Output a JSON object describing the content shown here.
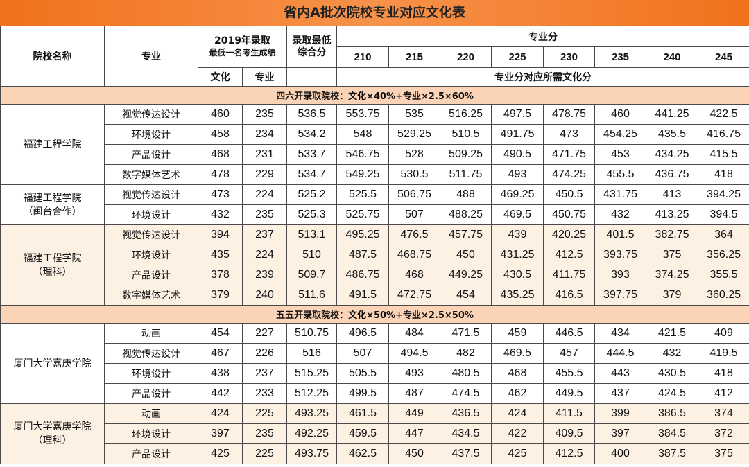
{
  "title": "省内A批次院校专业对应文化表",
  "header": {
    "school": "院校名称",
    "major": "专业",
    "min_score_line1": "2019年录取",
    "min_score_line2": "最低一名考生成绩",
    "culture": "文化",
    "prof": "专业",
    "composite_line1": "录取最低",
    "composite_line2": "综合分",
    "prof_score": "专业分",
    "prof_cols": [
      "210",
      "215",
      "220",
      "225",
      "230",
      "235",
      "240",
      "245"
    ],
    "needed": "专业分对应所需文化分"
  },
  "sections": [
    {
      "label": "四六开录取院校：文化×40%+专业×2.5×60%",
      "groups": [
        {
          "name_lines": [
            "福建工程学院"
          ],
          "tinted": false,
          "rows": [
            {
              "major": "视觉传达设计",
              "culture": "460",
              "prof": "235",
              "composite": "536.5",
              "vals": [
                "553.75",
                "535",
                "516.25",
                "497.5",
                "478.75",
                "460",
                "441.25",
                "422.5"
              ]
            },
            {
              "major": "环境设计",
              "culture": "458",
              "prof": "234",
              "composite": "534.2",
              "vals": [
                "548",
                "529.25",
                "510.5",
                "491.75",
                "473",
                "454.25",
                "435.5",
                "416.75"
              ]
            },
            {
              "major": "产品设计",
              "culture": "468",
              "prof": "231",
              "composite": "533.7",
              "vals": [
                "546.75",
                "528",
                "509.25",
                "490.5",
                "471.75",
                "453",
                "434.25",
                "415.5"
              ]
            },
            {
              "major": "数字媒体艺术",
              "culture": "478",
              "prof": "229",
              "composite": "534.7",
              "vals": [
                "549.25",
                "530.5",
                "511.75",
                "493",
                "474.25",
                "455.5",
                "436.75",
                "418"
              ]
            }
          ]
        },
        {
          "name_lines": [
            "福建工程学院",
            "（闽台合作）"
          ],
          "tinted": false,
          "rows": [
            {
              "major": "视觉传达设计",
              "culture": "473",
              "prof": "224",
              "composite": "525.2",
              "vals": [
                "525.5",
                "506.75",
                "488",
                "469.25",
                "450.5",
                "431.75",
                "413",
                "394.25"
              ]
            },
            {
              "major": "环境设计",
              "culture": "432",
              "prof": "235",
              "composite": "525.3",
              "vals": [
                "525.75",
                "507",
                "488.25",
                "469.5",
                "450.75",
                "432",
                "413.25",
                "394.5"
              ]
            }
          ]
        },
        {
          "name_lines": [
            "福建工程学院",
            "（理科）"
          ],
          "tinted": true,
          "rows": [
            {
              "major": "视觉传达设计",
              "culture": "394",
              "prof": "237",
              "composite": "513.1",
              "vals": [
                "495.25",
                "476.5",
                "457.75",
                "439",
                "420.25",
                "401.5",
                "382.75",
                "364"
              ]
            },
            {
              "major": "环境设计",
              "culture": "435",
              "prof": "224",
              "composite": "510",
              "vals": [
                "487.5",
                "468.75",
                "450",
                "431.25",
                "412.5",
                "393.75",
                "375",
                "356.25"
              ]
            },
            {
              "major": "产品设计",
              "culture": "378",
              "prof": "239",
              "composite": "509.7",
              "vals": [
                "486.75",
                "468",
                "449.25",
                "430.5",
                "411.75",
                "393",
                "374.25",
                "355.5"
              ]
            },
            {
              "major": "数字媒体艺术",
              "culture": "379",
              "prof": "240",
              "composite": "511.6",
              "vals": [
                "491.5",
                "472.75",
                "454",
                "435.25",
                "416.5",
                "397.75",
                "379",
                "360.25"
              ]
            }
          ]
        }
      ]
    },
    {
      "label": "五五开录取院校：文化×50%+专业×2.5×50%",
      "groups": [
        {
          "name_lines": [
            "厦门大学嘉庚学院"
          ],
          "tinted": false,
          "rows": [
            {
              "major": "动画",
              "culture": "454",
              "prof": "227",
              "composite": "510.75",
              "vals": [
                "496.5",
                "484",
                "471.5",
                "459",
                "446.5",
                "434",
                "421.5",
                "409"
              ]
            },
            {
              "major": "视觉传达设计",
              "culture": "467",
              "prof": "226",
              "composite": "516",
              "vals": [
                "507",
                "494.5",
                "482",
                "469.5",
                "457",
                "444.5",
                "432",
                "419.5"
              ]
            },
            {
              "major": "环境设计",
              "culture": "438",
              "prof": "237",
              "composite": "515.25",
              "vals": [
                "505.5",
                "493",
                "480.5",
                "468",
                "455.5",
                "443",
                "430.5",
                "418"
              ]
            },
            {
              "major": "产品设计",
              "culture": "442",
              "prof": "233",
              "composite": "512.25",
              "vals": [
                "499.5",
                "487",
                "474.5",
                "462",
                "449.5",
                "437",
                "424.5",
                "412"
              ]
            }
          ]
        },
        {
          "name_lines": [
            "厦门大学嘉庚学院",
            "（理科）"
          ],
          "tinted": true,
          "rows": [
            {
              "major": "动画",
              "culture": "424",
              "prof": "225",
              "composite": "493.25",
              "vals": [
                "461.5",
                "449",
                "436.5",
                "424",
                "411.5",
                "399",
                "386.5",
                "374"
              ]
            },
            {
              "major": "环境设计",
              "culture": "397",
              "prof": "235",
              "composite": "492.25",
              "vals": [
                "459.5",
                "447",
                "434.5",
                "422",
                "409.5",
                "397",
                "384.5",
                "372"
              ]
            },
            {
              "major": "产品设计",
              "culture": "425",
              "prof": "225",
              "composite": "493.75",
              "vals": [
                "462.5",
                "450",
                "437.5",
                "425",
                "412.5",
                "400",
                "387.5",
                "375"
              ]
            }
          ]
        }
      ]
    }
  ]
}
